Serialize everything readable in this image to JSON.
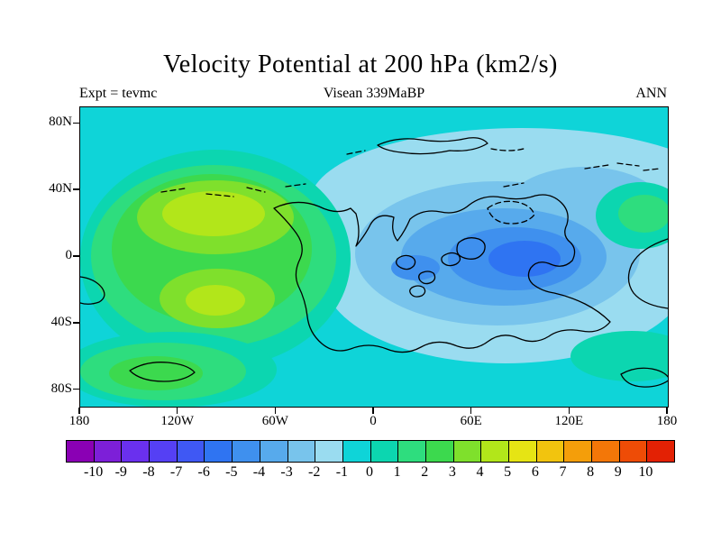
{
  "title": "Velocity Potential at 200 hPa (km2/s)",
  "header": {
    "left": "Expt = tevmc",
    "center": "Visean 339MaBP",
    "right": "ANN"
  },
  "chart_data": {
    "type": "heatmap",
    "subtype": "filled-contour-map",
    "title": "Velocity Potential at 200 hPa (km2/s)",
    "annotations": {
      "experiment": "Expt = tevmc",
      "period": "Visean 339MaBP",
      "season": "ANN"
    },
    "projection": "equirectangular",
    "x_axis": {
      "ticks": [
        "180",
        "120W",
        "60W",
        "0",
        "60E",
        "120E",
        "180"
      ],
      "range_deg": [
        -180,
        180
      ]
    },
    "y_axis": {
      "ticks": [
        "80N",
        "40N",
        "0",
        "40S",
        "80S"
      ],
      "range_deg": [
        90,
        -90
      ]
    },
    "colorbar": {
      "boundary_labels": [
        "-10",
        "-9",
        "-8",
        "-7",
        "-6",
        "-5",
        "-4",
        "-3",
        "-2",
        "-1",
        "0",
        "1",
        "2",
        "3",
        "4",
        "5",
        "6",
        "7",
        "8",
        "9",
        "10"
      ],
      "colors": [
        "#8a00b4",
        "#7d1fd8",
        "#6a30ee",
        "#5540f4",
        "#3f58f4",
        "#2f74f2",
        "#3f90ee",
        "#57aaec",
        "#78c4ec",
        "#9adcf0",
        "#0fd4d8",
        "#0cd6b0",
        "#2edd7e",
        "#3cd94e",
        "#7fe02c",
        "#b2e61a",
        "#e6e414",
        "#f2c40e",
        "#f49e0a",
        "#f37708",
        "#ee4c06",
        "#e32104"
      ],
      "units": "km2/s"
    },
    "background_value_range": [
      -1,
      0
    ],
    "features": [
      {
        "name": "positive-center-west",
        "approx_lon": "130W-70W",
        "approx_lat": "two lobes near 30N and 30S",
        "peak_value": 5
      },
      {
        "name": "negative-center-east",
        "approx_lon": "60E-90E",
        "approx_lat": "near equator",
        "peak_value": -6
      },
      {
        "name": "secondary-negative-center",
        "approx_lon": "20E",
        "approx_lat": "5S",
        "peak_value": -5
      },
      {
        "name": "secondary-positive-patch",
        "approx_lon": "155E",
        "approx_lat": "25N",
        "peak_value": 2
      },
      {
        "name": "southwest-positive-patch",
        "approx_lon": "170W-120W",
        "approx_lat": "60S-75S",
        "peak_value": 3
      }
    ]
  }
}
